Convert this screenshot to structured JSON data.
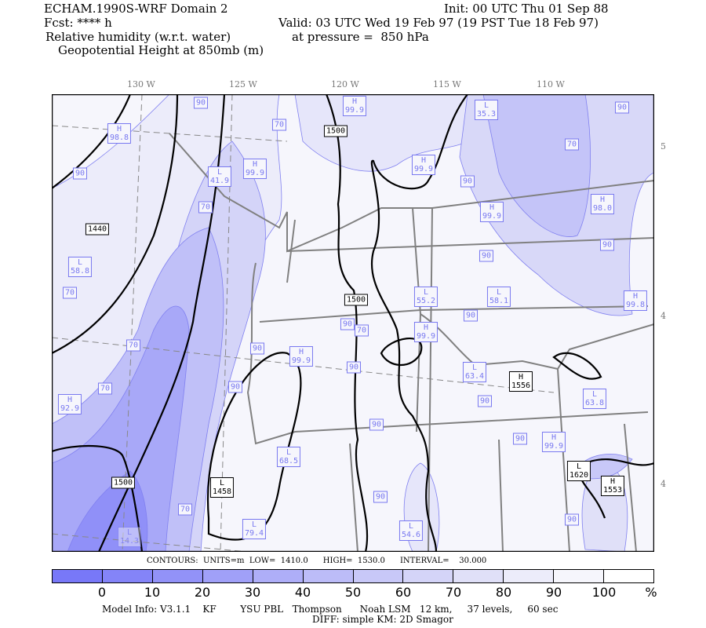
{
  "header": {
    "model": "ECHAM.1990S-WRF Domain 2",
    "init": "Init: 00 UTC Thu 01 Sep 88",
    "fcst": "Fcst: **** h",
    "valid": "Valid: 03 UTC Wed 19 Feb 97 (19 PST Tue 18 Feb 97)",
    "field1": "Relative humidity (w.r.t. water)",
    "pressure": "at pressure =  850 hPa",
    "field2": "Geopotential Height at 850mb (m)"
  },
  "axes": {
    "lon_labels": [
      "130 W",
      "125 W",
      "120 W",
      "115 W",
      "110 W"
    ],
    "lat_labels": [
      "5",
      "4",
      "4"
    ]
  },
  "map_labels": [
    {
      "t": "H\n99.9",
      "k": false
    },
    {
      "t": "1500",
      "k": true
    },
    {
      "t": "L\n35.3",
      "k": false
    },
    {
      "t": "90",
      "k": false
    },
    {
      "t": "70",
      "k": false
    },
    {
      "t": "H\n98.8",
      "k": false
    },
    {
      "t": "90",
      "k": false
    },
    {
      "t": "70",
      "k": false
    },
    {
      "t": "H\n99.9",
      "k": false
    },
    {
      "t": "L\n41.9",
      "k": false
    },
    {
      "t": "H\n99.9",
      "k": false
    },
    {
      "t": "90",
      "k": false
    },
    {
      "t": "90",
      "k": false
    },
    {
      "t": "H\n99.9",
      "k": false
    },
    {
      "t": "H\n98.0",
      "k": false
    },
    {
      "t": "70",
      "k": false
    },
    {
      "t": "1440",
      "k": true
    },
    {
      "t": "90",
      "k": false
    },
    {
      "t": "90",
      "k": false
    },
    {
      "t": "L\n58.8",
      "k": false
    },
    {
      "t": "70",
      "k": false
    },
    {
      "t": "L\n55.2",
      "k": false
    },
    {
      "t": "1500",
      "k": true
    },
    {
      "t": "L\n58.1",
      "k": false
    },
    {
      "t": "H\n99.8",
      "k": false
    },
    {
      "t": "90",
      "k": false
    },
    {
      "t": "90",
      "k": false
    },
    {
      "t": "70",
      "k": false
    },
    {
      "t": "H\n99.9",
      "k": false
    },
    {
      "t": "70",
      "k": false
    },
    {
      "t": "90",
      "k": false
    },
    {
      "t": "H\n99.9",
      "k": false
    },
    {
      "t": "90",
      "k": false
    },
    {
      "t": "L\n63.4",
      "k": false
    },
    {
      "t": "H\n1556",
      "k": true
    },
    {
      "t": "70",
      "k": false
    },
    {
      "t": "90",
      "k": false
    },
    {
      "t": "L\n63.8",
      "k": false
    },
    {
      "t": "H\n92.9",
      "k": false
    },
    {
      "t": "90",
      "k": false
    },
    {
      "t": "90",
      "k": false
    },
    {
      "t": "90",
      "k": false
    },
    {
      "t": "H\n99.9",
      "k": false
    },
    {
      "t": "L\n68.5",
      "k": false
    },
    {
      "t": "L\n1620",
      "k": true
    },
    {
      "t": "H\n1553",
      "k": true
    },
    {
      "t": "1500",
      "k": true
    },
    {
      "t": "L\n1458",
      "k": true
    },
    {
      "t": "90",
      "k": false
    },
    {
      "t": "70",
      "k": false
    },
    {
      "t": "L\n79.4",
      "k": false
    },
    {
      "t": "L\n54.6",
      "k": false
    },
    {
      "t": "90",
      "k": false
    },
    {
      "t": "L\n14.3",
      "k": false
    }
  ],
  "contours": {
    "text": "CONTOURS:  UNITS=m  LOW=  1410.0      HIGH=  1530.0      INTERVAL=    30.000"
  },
  "colorbar": {
    "colors": [
      "#7878f8",
      "#8484f8",
      "#9292f8",
      "#a0a0f8",
      "#aeaef8",
      "#bcbcf8",
      "#c8c8f8",
      "#d4d4f8",
      "#e0e0f8",
      "#ececfa",
      "#f6f6fc",
      "#ffffff"
    ],
    "labels": [
      "0",
      "10",
      "20",
      "30",
      "40",
      "50",
      "60",
      "70",
      "80",
      "90",
      "100"
    ],
    "unit": "%"
  },
  "footer": {
    "model_info": "Model Info: V3.1.1    KF        YSU PBL   Thompson      Noah LSM   12 km,     37 levels,     60 sec",
    "diff": "DIFF: simple KM: 2D Smagor"
  }
}
